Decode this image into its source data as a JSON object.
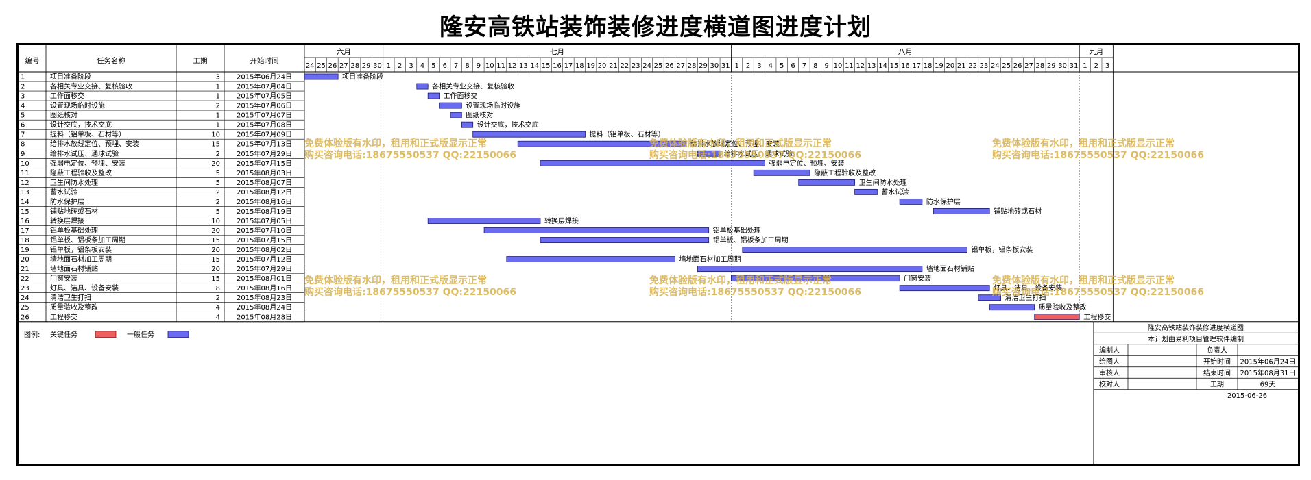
{
  "title": "隆安高铁站装饰装修进度横道图进度计划",
  "headers": {
    "no": "编号",
    "name": "任务名称",
    "duration": "工期",
    "start": "开始时间"
  },
  "months": [
    "六月",
    "七月",
    "八月",
    "九月"
  ],
  "day_labels": [
    "24",
    "25",
    "26",
    "27",
    "28",
    "29",
    "30",
    "1",
    "2",
    "3",
    "4",
    "5",
    "6",
    "7",
    "8",
    "9",
    "10",
    "11",
    "12",
    "13",
    "14",
    "15",
    "16",
    "17",
    "18",
    "19",
    "20",
    "21",
    "22",
    "23",
    "24",
    "25",
    "26",
    "27",
    "28",
    "29",
    "30",
    "31",
    "1",
    "2",
    "3",
    "4",
    "5",
    "6",
    "7",
    "8",
    "9",
    "10",
    "11",
    "12",
    "13",
    "14",
    "15",
    "16",
    "17",
    "18",
    "19",
    "20",
    "21",
    "22",
    "23",
    "24",
    "25",
    "26",
    "27",
    "28",
    "29",
    "30",
    "31",
    "1",
    "2",
    "3"
  ],
  "tasks": [
    {
      "no": "1",
      "name": "项目准备阶段",
      "duration": "3",
      "start": "2015年06月24日"
    },
    {
      "no": "2",
      "name": "各相关专业交接、复核验收",
      "duration": "1",
      "start": "2015年07月04日"
    },
    {
      "no": "3",
      "name": "工作面移交",
      "duration": "1",
      "start": "2015年07月05日"
    },
    {
      "no": "4",
      "name": "设置现场临时设施",
      "duration": "2",
      "start": "2015年07月06日"
    },
    {
      "no": "5",
      "name": "图纸核对",
      "duration": "1",
      "start": "2015年07月07日"
    },
    {
      "no": "6",
      "name": "设计交底，技术交底",
      "duration": "1",
      "start": "2015年07月08日"
    },
    {
      "no": "7",
      "name": "提料（铝单板、石材等）",
      "duration": "10",
      "start": "2015年07月09日"
    },
    {
      "no": "8",
      "name": "给排水放线定位、预埋、安装",
      "duration": "15",
      "start": "2015年07月13日"
    },
    {
      "no": "9",
      "name": "给排水试压、通球试验",
      "duration": "2",
      "start": "2015年07月29日"
    },
    {
      "no": "10",
      "name": "强弱电定位、预埋、安装",
      "duration": "20",
      "start": "2015年07月15日"
    },
    {
      "no": "11",
      "name": "隐蔽工程验收及整改",
      "duration": "5",
      "start": "2015年08月03日"
    },
    {
      "no": "12",
      "name": "卫生间防水处理",
      "duration": "5",
      "start": "2015年08月07日"
    },
    {
      "no": "13",
      "name": "蓄水试验",
      "duration": "2",
      "start": "2015年08月12日"
    },
    {
      "no": "14",
      "name": "防水保护层",
      "duration": "2",
      "start": "2015年08月16日"
    },
    {
      "no": "15",
      "name": "铺贴地砖或石材",
      "duration": "5",
      "start": "2015年08月19日"
    },
    {
      "no": "16",
      "name": "转换层焊接",
      "duration": "10",
      "start": "2015年07月05日"
    },
    {
      "no": "17",
      "name": "铝单板基础处理",
      "duration": "20",
      "start": "2015年07月10日"
    },
    {
      "no": "18",
      "name": "铝单板、铝板条加工周期",
      "duration": "15",
      "start": "2015年07月15日"
    },
    {
      "no": "19",
      "name": "铝单板，铝条板安装",
      "duration": "20",
      "start": "2015年08月02日"
    },
    {
      "no": "20",
      "name": "墙地面石材加工周期",
      "duration": "15",
      "start": "2015年07月12日"
    },
    {
      "no": "21",
      "name": "墙地面石材铺贴",
      "duration": "20",
      "start": "2015年07月29日"
    },
    {
      "no": "22",
      "name": "门窗安装",
      "duration": "15",
      "start": "2015年08月01日"
    },
    {
      "no": "23",
      "name": "灯具、洁具、设备安装",
      "duration": "8",
      "start": "2015年08月16日"
    },
    {
      "no": "24",
      "name": "清洁卫生打扫",
      "duration": "2",
      "start": "2015年08月23日"
    },
    {
      "no": "25",
      "name": "质量验收及整改",
      "duration": "4",
      "start": "2015年08月24日"
    },
    {
      "no": "26",
      "name": "工程移交",
      "duration": "4",
      "start": "2015年08月28日",
      "critical": true
    }
  ],
  "chart_data": {
    "type": "gantt",
    "x_axis": "dates 2015-06-24 to 2015-09-03",
    "series": [
      {
        "name": "一般任务",
        "color": "#6b6bf2"
      },
      {
        "name": "关键任务",
        "color": "#ee5e5e"
      }
    ],
    "bars": [
      {
        "task": "项目准备阶段",
        "start": "2015-06-24",
        "days": 3
      },
      {
        "task": "各相关专业交接、复核验收",
        "start": "2015-07-04",
        "days": 1
      },
      {
        "task": "工作面移交",
        "start": "2015-07-05",
        "days": 1
      },
      {
        "task": "设置现场临时设施",
        "start": "2015-07-06",
        "days": 2
      },
      {
        "task": "图纸核对",
        "start": "2015-07-07",
        "days": 1
      },
      {
        "task": "设计交底，技术交底",
        "start": "2015-07-08",
        "days": 1
      },
      {
        "task": "提料（铝单板、石材等）",
        "start": "2015-07-09",
        "days": 10
      },
      {
        "task": "给排水放线定位、预埋、安装",
        "start": "2015-07-13",
        "days": 15
      },
      {
        "task": "给排水试压、通球试验",
        "start": "2015-07-29",
        "days": 2
      },
      {
        "task": "强弱电定位、预埋、安装",
        "start": "2015-07-15",
        "days": 20
      },
      {
        "task": "隐蔽工程验收及整改",
        "start": "2015-08-03",
        "days": 5
      },
      {
        "task": "卫生间防水处理",
        "start": "2015-08-07",
        "days": 5
      },
      {
        "task": "蓄水试验",
        "start": "2015-08-12",
        "days": 2
      },
      {
        "task": "防水保护层",
        "start": "2015-08-16",
        "days": 2
      },
      {
        "task": "铺贴地砖或石材",
        "start": "2015-08-19",
        "days": 5
      },
      {
        "task": "转换层焊接",
        "start": "2015-07-05",
        "days": 10
      },
      {
        "task": "铝单板基础处理",
        "start": "2015-07-10",
        "days": 20
      },
      {
        "task": "铝单板、铝板条加工周期",
        "start": "2015-07-15",
        "days": 15
      },
      {
        "task": "铝单板，铝条板安装",
        "start": "2015-08-02",
        "days": 20
      },
      {
        "task": "墙地面石材加工周期",
        "start": "2015-07-12",
        "days": 15
      },
      {
        "task": "墙地面石材铺贴",
        "start": "2015-07-29",
        "days": 20
      },
      {
        "task": "门窗安装",
        "start": "2015-08-01",
        "days": 15
      },
      {
        "task": "灯具、洁具、设备安装",
        "start": "2015-08-16",
        "days": 8
      },
      {
        "task": "清洁卫生打扫",
        "start": "2015-08-23",
        "days": 2
      },
      {
        "task": "质量验收及整改",
        "start": "2015-08-24",
        "days": 4
      },
      {
        "task": "工程移交",
        "start": "2015-08-28",
        "days": 4,
        "critical": true
      }
    ]
  },
  "legend": {
    "label": "图例:",
    "critical": "关键任务",
    "normal": "一般任务"
  },
  "colors": {
    "normal": "#6b6bf2",
    "critical": "#ee5e5e",
    "critical_text": "#e00000",
    "watermark": "#d8b14a"
  },
  "watermark": {
    "line1": "免费体验版有水印，租用和正式版显示正常",
    "line2": "购买咨询电话:18675550537 QQ:22150066"
  },
  "info": {
    "title1": "隆安高铁站装饰装修进度横道图",
    "title2": "本计划由易利项目管理软件编制",
    "editor_label": "编制人",
    "owner_label": "负责人",
    "drawer_label": "绘图人",
    "start_label": "开始时间",
    "start_value": "2015年06月24日",
    "reviewer_label": "审核人",
    "end_label": "结束时间",
    "end_value": "2015年08月31日",
    "checker_label": "校对人",
    "duration_label": "工期",
    "duration_value": "69天",
    "date": "2015-06-26"
  }
}
